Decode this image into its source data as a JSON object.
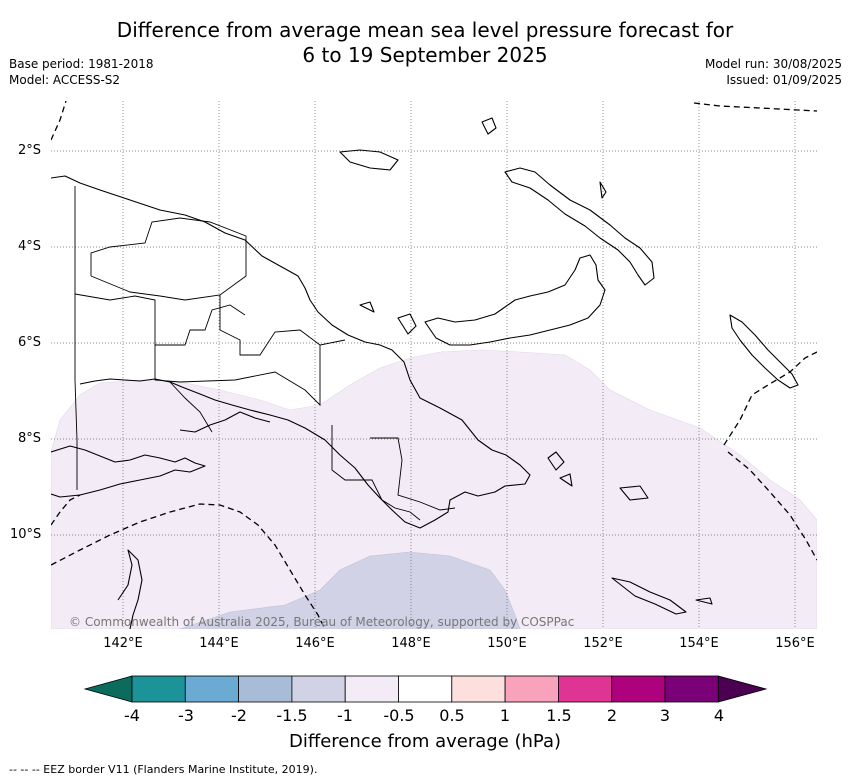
{
  "title_line1": "Difference from average mean sea level pressure forecast for",
  "title_line2": "6 to 19 September 2025",
  "meta_left": [
    "Base period: 1981-2018",
    "Model: ACCESS-S2"
  ],
  "meta_right": [
    "Model run: 30/08/2025",
    "Issued: 01/09/2025"
  ],
  "lat_labels": [
    "2°S",
    "4°S",
    "6°S",
    "8°S",
    "10°S"
  ],
  "lon_labels": [
    "142°E",
    "144°E",
    "146°E",
    "148°E",
    "150°E",
    "152°E",
    "154°E",
    "156°E"
  ],
  "copyright": "© Commonwealth of Australia 2025, Bureau of Meteorology, supported by COSPPac",
  "colorbar": {
    "ticks": [
      "-4",
      "-3",
      "-2",
      "-1.5",
      "-1",
      "-0.5",
      "0.5",
      "1",
      "1.5",
      "2",
      "3",
      "4"
    ],
    "colors": [
      "#0b6b5c",
      "#1c9399",
      "#6aaad3",
      "#a8bcd8",
      "#d1d2e6",
      "#f3ebf5",
      "#ffffff",
      "#fde0dd",
      "#f9a2bc",
      "#df3493",
      "#ad017e",
      "#7a0177",
      "#4b0052"
    ],
    "label": "Difference from average (hPa)"
  },
  "footer": "--  --  -- EEZ border V11 (Flanders Marine Institute, 2019).",
  "map_data": {
    "lon_range": [
      140.5,
      156.5
    ],
    "lat_range": [
      -12.0,
      -1.0
    ],
    "anomaly_fill_colors": [
      "#f3ebf5",
      "#d1d2e6"
    ]
  }
}
